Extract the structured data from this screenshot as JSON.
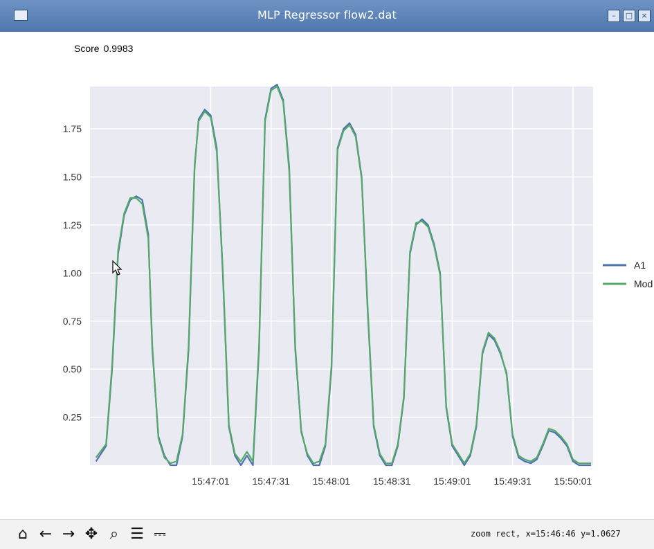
{
  "window": {
    "title": "MLP Regressor flow2.dat",
    "controls": [
      "minimize",
      "maximize",
      "close"
    ]
  },
  "score": {
    "label": "Score",
    "value": "0.9983"
  },
  "chart_data": {
    "type": "line",
    "x_tick_labels": [
      "15:47:01",
      "15:47:31",
      "15:48:01",
      "15:48:31",
      "15:49:01",
      "15:49:31",
      "15:50:01"
    ],
    "y_tick_labels": [
      "0.25",
      "0.50",
      "0.75",
      "1.00",
      "1.25",
      "1.50",
      "1.75"
    ],
    "ylim": [
      0.0,
      1.97
    ],
    "x_range_seconds": [
      -60,
      190
    ],
    "grid": true,
    "legend_position": "right",
    "series": [
      {
        "name": "A1",
        "color": "#4c72b0",
        "x": [
          -57,
          -52,
          -49,
          -46,
          -43,
          -40,
          -37,
          -34,
          -31,
          -29,
          -26,
          -23,
          -20,
          -17,
          -14,
          -11,
          -8,
          -6,
          -3,
          0,
          3,
          6,
          9,
          12,
          15,
          18,
          21,
          24,
          27,
          30,
          33,
          36,
          39,
          42,
          45,
          48,
          51,
          54,
          57,
          60,
          63,
          66,
          69,
          72,
          75,
          78,
          81,
          84,
          87,
          90,
          93,
          96,
          99,
          102,
          105,
          108,
          111,
          114,
          117,
          120,
          123,
          126,
          129,
          132,
          135,
          138,
          141,
          144,
          147,
          150,
          153,
          156,
          159,
          162,
          165,
          168,
          171,
          174,
          177,
          180,
          183,
          186,
          189
        ],
        "y": [
          0.02,
          0.1,
          0.5,
          1.1,
          1.3,
          1.38,
          1.4,
          1.38,
          1.2,
          0.6,
          0.15,
          0.05,
          0.0,
          0.0,
          0.15,
          0.6,
          1.55,
          1.8,
          1.85,
          1.82,
          1.65,
          1.0,
          0.2,
          0.05,
          0.0,
          0.05,
          0.0,
          0.6,
          1.8,
          1.96,
          1.98,
          1.9,
          1.55,
          0.6,
          0.18,
          0.05,
          0.0,
          0.0,
          0.1,
          0.5,
          1.65,
          1.75,
          1.78,
          1.72,
          1.5,
          0.8,
          0.2,
          0.05,
          0.0,
          0.0,
          0.1,
          0.35,
          1.1,
          1.25,
          1.28,
          1.25,
          1.15,
          1.0,
          0.3,
          0.1,
          0.05,
          0.0,
          0.05,
          0.2,
          0.58,
          0.68,
          0.65,
          0.58,
          0.48,
          0.15,
          0.04,
          0.02,
          0.01,
          0.03,
          0.1,
          0.18,
          0.17,
          0.14,
          0.1,
          0.02,
          0.0,
          0.0,
          0.0
        ]
      },
      {
        "name": "Mod",
        "color": "#55a868",
        "x": [
          -57,
          -52,
          -49,
          -46,
          -43,
          -40,
          -37,
          -34,
          -31,
          -29,
          -26,
          -23,
          -20,
          -17,
          -14,
          -11,
          -8,
          -6,
          -3,
          0,
          3,
          6,
          9,
          12,
          15,
          18,
          21,
          24,
          27,
          30,
          33,
          36,
          39,
          42,
          45,
          48,
          51,
          54,
          57,
          60,
          63,
          66,
          69,
          72,
          75,
          78,
          81,
          84,
          87,
          90,
          93,
          96,
          99,
          102,
          105,
          108,
          111,
          114,
          117,
          120,
          123,
          126,
          129,
          132,
          135,
          138,
          141,
          144,
          147,
          150,
          153,
          156,
          159,
          162,
          165,
          168,
          171,
          174,
          177,
          180,
          183,
          186,
          189
        ],
        "y": [
          0.04,
          0.11,
          0.52,
          1.12,
          1.31,
          1.39,
          1.39,
          1.36,
          1.18,
          0.62,
          0.14,
          0.04,
          0.01,
          0.02,
          0.16,
          0.62,
          1.56,
          1.79,
          1.84,
          1.81,
          1.63,
          1.02,
          0.21,
          0.06,
          0.02,
          0.07,
          0.02,
          0.62,
          1.79,
          1.95,
          1.97,
          1.89,
          1.53,
          0.62,
          0.17,
          0.06,
          0.01,
          0.02,
          0.11,
          0.52,
          1.64,
          1.74,
          1.77,
          1.71,
          1.49,
          0.82,
          0.21,
          0.06,
          0.01,
          0.01,
          0.11,
          0.36,
          1.11,
          1.26,
          1.27,
          1.24,
          1.14,
          0.99,
          0.31,
          0.11,
          0.06,
          0.01,
          0.06,
          0.21,
          0.59,
          0.69,
          0.66,
          0.59,
          0.47,
          0.16,
          0.05,
          0.03,
          0.02,
          0.04,
          0.11,
          0.19,
          0.18,
          0.15,
          0.11,
          0.03,
          0.01,
          0.01,
          0.01
        ]
      }
    ]
  },
  "toolbar": {
    "buttons": [
      {
        "name": "home-icon",
        "glyph": "⌂"
      },
      {
        "name": "back-icon",
        "glyph": "←"
      },
      {
        "name": "forward-icon",
        "glyph": "→"
      },
      {
        "name": "pan-icon",
        "glyph": "✥"
      },
      {
        "name": "zoom-icon",
        "glyph": "⌕"
      },
      {
        "name": "configure-subplots-icon",
        "glyph": "☰"
      },
      {
        "name": "save-icon",
        "glyph": "⎓"
      }
    ],
    "status": "zoom rect, x=15:46:46 y=1.0627"
  }
}
